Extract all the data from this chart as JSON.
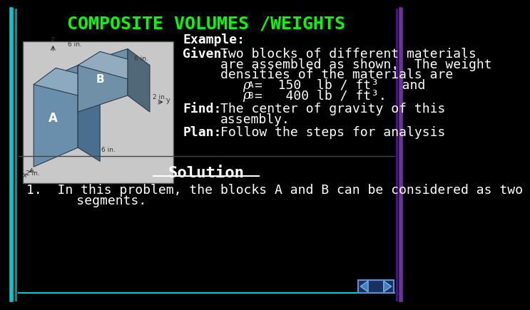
{
  "title": "COMPOSITE VOLUMES /WEIGHTS",
  "title_color": "#00FF00",
  "background_color": "#000000",
  "text_color": "#FFFFFF",
  "example_label": "Example:",
  "given_label": "Given:",
  "given_text1": "Two blocks of different materials",
  "given_text2": "are assembled as shown.  The weight",
  "given_text3": "densities of the materials are",
  "rho_A_eq": "=  150  lb / ft³   and",
  "rho_B_eq": "=   400 lb / ft³.",
  "find_label": "Find:",
  "find_text1": "The center of gravity of this",
  "find_text2": "assembly.",
  "plan_label": "Plan:",
  "plan_text": "Follow the steps for analysis",
  "solution_label": "Solution",
  "item1_line1": "1.  In this problem, the blocks A and B can be considered as two",
  "item1_line2": "     segments.",
  "label_fontsize": 13,
  "body_fontsize": 13,
  "title_fontsize": 18
}
